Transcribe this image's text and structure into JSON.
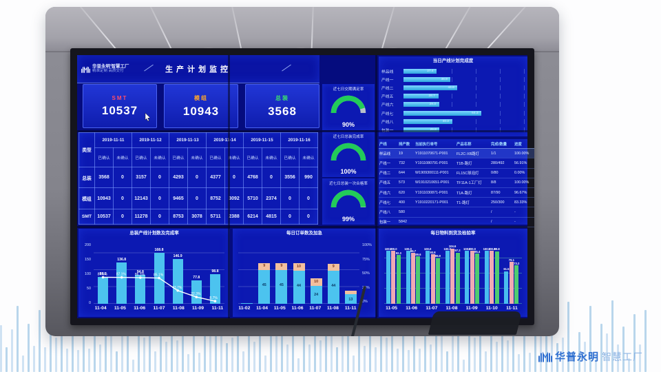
{
  "watermark": {
    "brand": "华普永明",
    "suffix": "智慧工厂"
  },
  "dashboard": {
    "header": {
      "logo_line1": "华普永明'智慧工厂",
      "logo_line2": "精准定制 高质交付",
      "title": "生产计划监控"
    },
    "kpis": [
      {
        "label": "SMT",
        "value": "10537",
        "color": "#ff4d6a"
      },
      {
        "label": "模组",
        "value": "10943",
        "color": "#ffa62b"
      },
      {
        "label": "总装",
        "value": "3568",
        "color": "#3ae26e"
      }
    ],
    "plan_table": {
      "corner": "类型",
      "dates": [
        "2019-11-11",
        "2019-11-12",
        "2019-11-13",
        "2019-11-14",
        "2019-11-15",
        "2019-11-16"
      ],
      "sub": [
        "已确认",
        "未确认"
      ],
      "rows": [
        {
          "type": "总装",
          "values": [
            [
              "3568",
              "0"
            ],
            [
              "3157",
              "0"
            ],
            [
              "4293",
              "0"
            ],
            [
              "4377",
              "0"
            ],
            [
              "4768",
              "0"
            ],
            [
              "3556",
              "990"
            ]
          ]
        },
        {
          "type": "模组",
          "values": [
            [
              "10943",
              "0"
            ],
            [
              "12143",
              "0"
            ],
            [
              "9465",
              "0"
            ],
            [
              "8752",
              "3092"
            ],
            [
              "5710",
              "2374"
            ],
            [
              "0",
              "0"
            ]
          ]
        },
        {
          "type": "SMT",
          "values": [
            [
              "10537",
              "0"
            ],
            [
              "11278",
              "0"
            ],
            [
              "8753",
              "3078"
            ],
            [
              "5711",
              "2388"
            ],
            [
              "6214",
              "4815"
            ],
            [
              "0",
              "0"
            ]
          ]
        }
      ]
    },
    "gauges": [
      {
        "title": "近七日交期满足率",
        "value": 90,
        "display": "90%"
      },
      {
        "title": "近七日总装完成率",
        "value": 100,
        "display": "100%"
      },
      {
        "title": "近七日总装一次合格率",
        "value": 99,
        "display": "99%"
      }
    ],
    "line_table": {
      "headers": [
        "产线",
        "排产数",
        "当前执行单号",
        "产品名称",
        "完成/数量",
        "进度"
      ],
      "rows": [
        [
          "样品线",
          "19",
          "Y1911070671-P001",
          "FL2C-XB路灯",
          "1/1",
          "100.00%"
        ],
        [
          "产线一",
          "732",
          "Y1911080791-P001",
          "T1B-路灯",
          "280/492",
          "56.91%"
        ],
        [
          "产线二",
          "644",
          "W1909300111-P001",
          "FL15C球泡灯",
          "0/80",
          "0.00%"
        ],
        [
          "产线五",
          "573",
          "W1910210651-P001",
          "TF11A-1工厂灯",
          "8/8",
          "100.00%"
        ],
        [
          "产线六",
          "620",
          "Y1911030871-P001",
          "T1A-路灯",
          "87/90",
          "96.67%"
        ],
        [
          "产线七",
          "400",
          "Y1910220171-P001",
          "T1-路灯",
          "250/300",
          "83.33%"
        ],
        [
          "产线八",
          "580",
          "",
          "",
          "/",
          "-"
        ],
        [
          "包装一",
          "5842",
          "",
          "",
          "/",
          "-"
        ]
      ]
    }
  },
  "chart_data": [
    {
      "id": "line-completion",
      "type": "bar",
      "orientation": "horizontal",
      "title": "当日产线计划完成度",
      "categories": [
        "样品线",
        "产线一",
        "产线二",
        "产线五",
        "产线六",
        "产线七",
        "产线八",
        "包装一"
      ],
      "values": [
        27.4,
        38.9,
        44.6,
        28.7,
        29.3,
        64.3,
        40.2,
        29.8
      ],
      "xlim": [
        0,
        100
      ],
      "bar_color": "#49bdf0",
      "grid": "vertical"
    },
    {
      "id": "assembly-plan",
      "type": "bar+line",
      "title": "总装产线计划数及完成率",
      "categories": [
        "11-04",
        "11-05",
        "11-06",
        "11-07",
        "11-08",
        "11-09",
        "11-11"
      ],
      "bar_values": [
        88.2,
        136.8,
        94.8,
        168.8,
        146.9,
        77.8,
        98.8
      ],
      "line_values_pct": [
        87.5,
        87.1,
        86.3,
        85.1,
        43.7,
        22.3,
        8.7
      ],
      "yticks": [
        200,
        150,
        100,
        50,
        0
      ],
      "ylim": [
        0,
        200
      ],
      "bar_color": "#4cc3ef",
      "line_color": "#ffffff"
    },
    {
      "id": "daily-orders",
      "type": "stacked_bar",
      "title": "每日订单数及加急",
      "categories": [
        "11-02",
        "11-04",
        "11-05",
        "11-06",
        "11-07",
        "11-08",
        "11-11"
      ],
      "series": [
        {
          "name": "bar-cyan",
          "color": "#4cc3ef",
          "values": [
            1,
            45,
            45,
            44,
            24,
            44,
            13
          ]
        },
        {
          "name": "bar-orange",
          "color": "#f2bf9e",
          "values": [
            0,
            9,
            9,
            10,
            10,
            9,
            4
          ]
        }
      ],
      "right_axis_ticks": [
        "100%",
        "75%",
        "50%",
        "25%",
        "0%"
      ],
      "ylim": [
        0,
        80
      ]
    },
    {
      "id": "material-arrival",
      "type": "grouped_bar",
      "title": "每日物料到货及检验率",
      "categories": [
        "11-05",
        "11-06",
        "11-07",
        "11-08",
        "11-09",
        "11-10",
        "11-11"
      ],
      "series": [
        {
          "name": "bar-blue",
          "color": "#49bdf0",
          "values": [
            100.0,
            100.0,
            100.0,
            100.0,
            100.0,
            100.0,
            61.5
          ]
        },
        {
          "name": "bar-pink",
          "color": "#f0aab4",
          "values": [
            100.0,
            96.7,
            93.8,
            104.6,
            100.0,
            100.0,
            79.1
          ]
        },
        {
          "name": "bar-green",
          "color": "#4ecb71",
          "values": [
            92.3,
            89.6,
            86.9,
            97.2,
            95.4,
            99.8,
            73.2
          ]
        }
      ],
      "ylim": [
        0,
        115
      ],
      "grid": "horizontal"
    }
  ]
}
